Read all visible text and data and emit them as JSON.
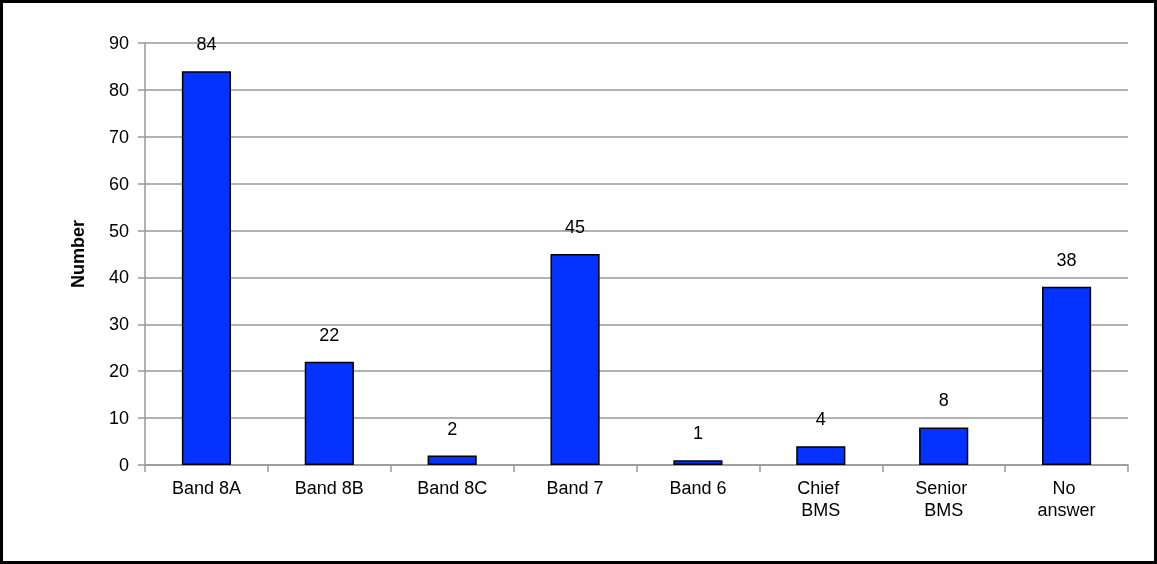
{
  "chart_data": {
    "type": "bar",
    "ylabel": "Number",
    "categories": [
      "Band 8A",
      "Band 8B",
      "Band 8C",
      "Band 7",
      "Band 6",
      "Chief BMS",
      "Senior BMS",
      "No answer"
    ],
    "values": [
      84,
      22,
      2,
      45,
      1,
      4,
      8,
      38
    ],
    "color": "#0433ff",
    "ylim": [
      0,
      90
    ],
    "yticks": [
      0,
      10,
      20,
      30,
      40,
      50,
      60,
      70,
      80,
      90
    ],
    "grid": "y",
    "data_labels": true
  }
}
